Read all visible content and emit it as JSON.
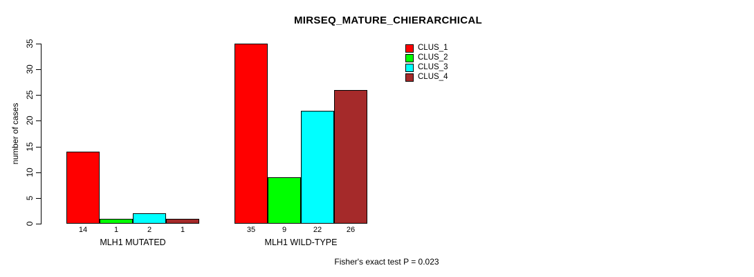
{
  "chart_data": {
    "type": "bar",
    "title": "MIRSEQ_MATURE_CHIERARCHICAL",
    "xlabel": "",
    "ylabel": "number of cases",
    "ylim": [
      0,
      35
    ],
    "yticks": [
      0,
      5,
      10,
      15,
      20,
      25,
      30,
      35
    ],
    "categories": [
      "MLH1 MUTATED",
      "MLH1 WILD-TYPE"
    ],
    "series": [
      {
        "name": "CLUS_1",
        "color": "#FF0000",
        "values": [
          14,
          35
        ]
      },
      {
        "name": "CLUS_2",
        "color": "#00FF00",
        "values": [
          1,
          9
        ]
      },
      {
        "name": "CLUS_3",
        "color": "#00FFFF",
        "values": [
          2,
          22
        ]
      },
      {
        "name": "CLUS_4",
        "color": "#A52A2A",
        "values": [
          1,
          26
        ]
      }
    ],
    "bar_value_labels": [
      [
        14,
        1,
        2,
        1
      ],
      [
        35,
        9,
        22,
        26
      ]
    ],
    "legend": [
      "CLUS_1",
      "CLUS_2",
      "CLUS_3",
      "CLUS_4"
    ],
    "legend_position": "top-right",
    "grid": false,
    "annotation": "Fisher's exact test P = 0.023"
  }
}
